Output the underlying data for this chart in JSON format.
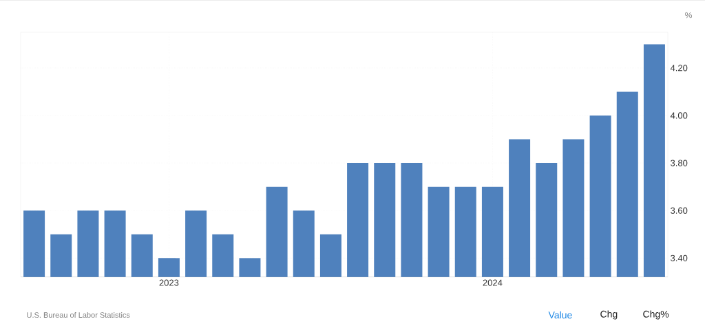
{
  "chart_data": {
    "type": "bar",
    "ylabel": "%",
    "categories": [
      null,
      null,
      null,
      null,
      null,
      "2023",
      null,
      null,
      null,
      null,
      null,
      null,
      null,
      null,
      null,
      null,
      null,
      "2024",
      null,
      null,
      null,
      null,
      null,
      null
    ],
    "values": [
      3.6,
      3.5,
      3.6,
      3.6,
      3.5,
      3.4,
      3.6,
      3.5,
      3.4,
      3.7,
      3.6,
      3.5,
      3.8,
      3.8,
      3.8,
      3.7,
      3.7,
      3.7,
      3.9,
      3.8,
      3.9,
      4.0,
      4.1,
      4.3
    ],
    "color": "#4f81bd",
    "ylim": [
      3.32,
      4.35
    ],
    "yticks": [
      {
        "value": 3.4,
        "label": "3.40"
      },
      {
        "value": 3.6,
        "label": "3.60"
      },
      {
        "value": 3.8,
        "label": "3.80"
      },
      {
        "value": 4.0,
        "label": "4.00"
      },
      {
        "value": 4.2,
        "label": "4.20"
      }
    ],
    "grid": true,
    "annotations": [
      "U.S. Bureau of Labor Statistics",
      "Value",
      "Chg",
      "Chg%"
    ]
  }
}
